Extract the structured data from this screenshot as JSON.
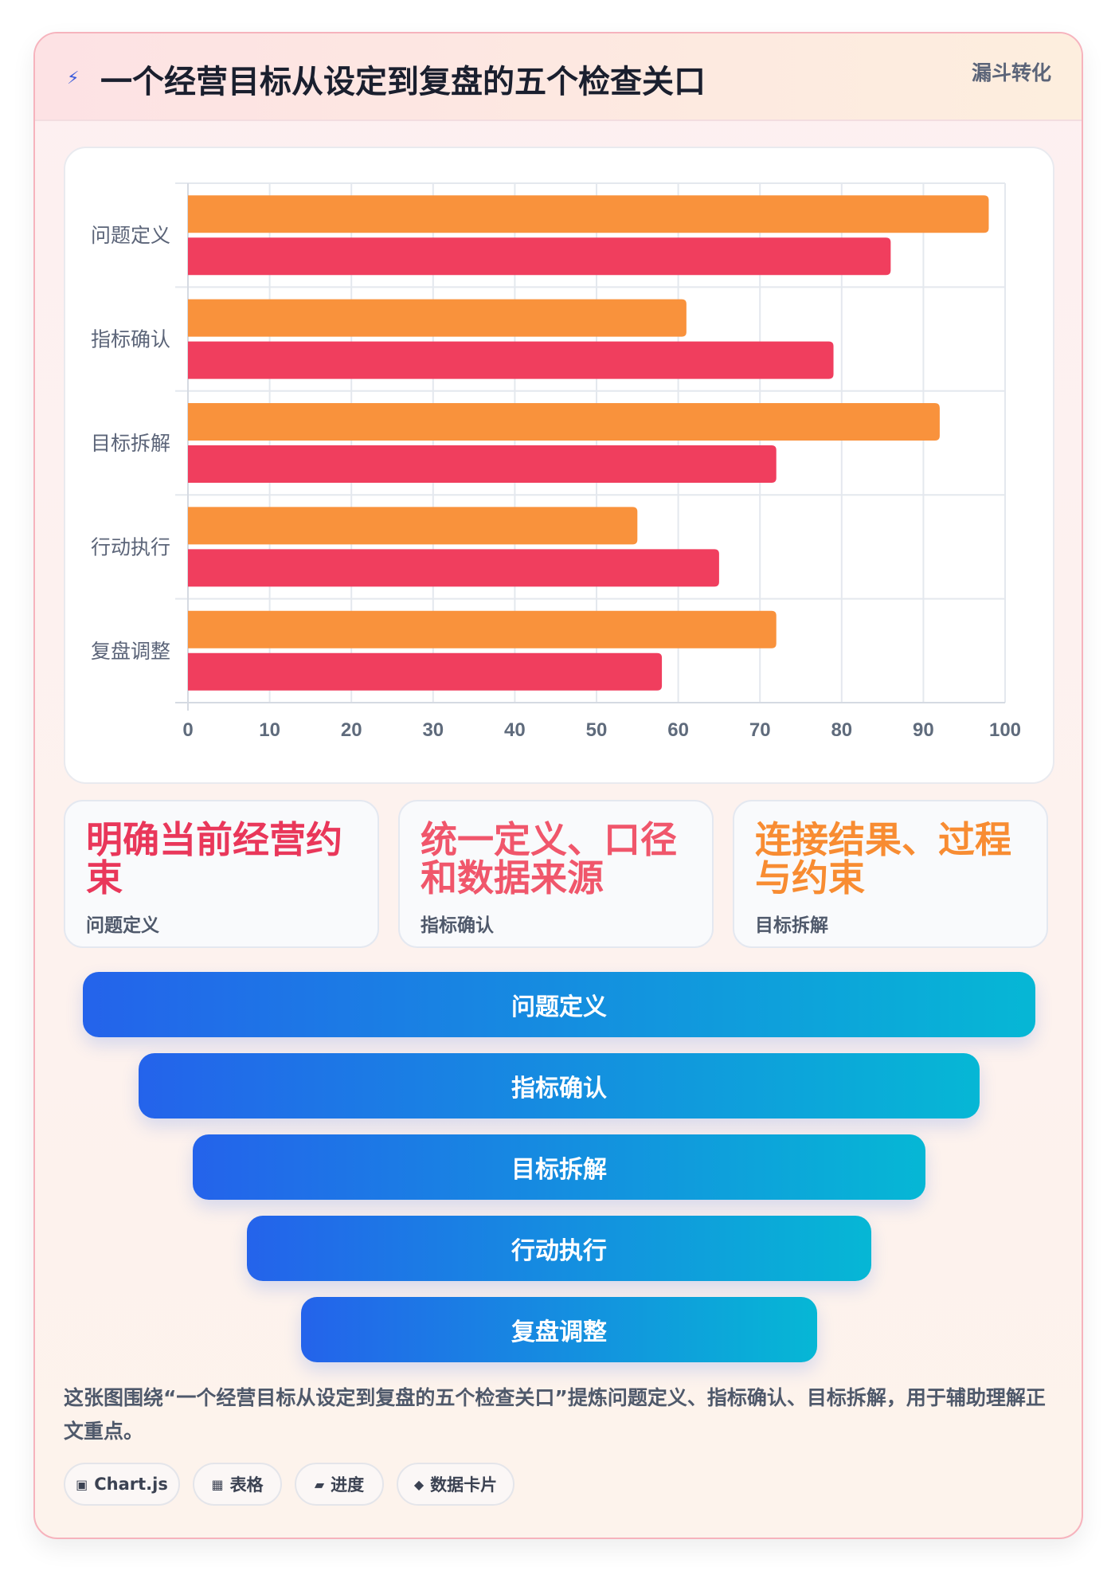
{
  "header": {
    "title": "一个经营目标从设定到复盘的五个检查关口",
    "badge": "漏斗转化",
    "icon": "lightning-icon"
  },
  "chart_data": {
    "type": "bar",
    "orientation": "horizontal",
    "categories": [
      "问题定义",
      "指标确认",
      "目标拆解",
      "行动执行",
      "复盘调整"
    ],
    "series": [
      {
        "color": "#f9923c",
        "values": [
          98,
          61,
          92,
          55,
          72
        ]
      },
      {
        "color": "#f03e5e",
        "values": [
          86,
          79,
          72,
          65,
          58
        ]
      }
    ],
    "xlim": [
      0,
      100
    ],
    "ticks": [
      0,
      10,
      20,
      30,
      40,
      50,
      60,
      70,
      80,
      90,
      100
    ],
    "grid": true,
    "legend": "none"
  },
  "stats": [
    {
      "value": "明确当前经营约束",
      "label": "问题定义",
      "color": "#e9375a"
    },
    {
      "value": "统一定义、口径和数据来源",
      "label": "指标确认",
      "color": "#f0566b"
    },
    {
      "value": "连接结果、过程与约束",
      "label": "目标拆解",
      "color": "#f88c32"
    }
  ],
  "funnel": [
    "问题定义",
    "指标确认",
    "目标拆解",
    "行动执行",
    "复盘调整"
  ],
  "description": "这张图围绕“一个经营目标从设定到复盘的五个检查关口”提炼问题定义、指标确认、目标拆解，用于辅助理解正文重点。",
  "tags": [
    {
      "icon": "▣",
      "label": "Chart.js"
    },
    {
      "icon": "▦",
      "label": "表格"
    },
    {
      "icon": "▰",
      "label": "进度"
    },
    {
      "icon": "◆",
      "label": "数据卡片"
    }
  ]
}
